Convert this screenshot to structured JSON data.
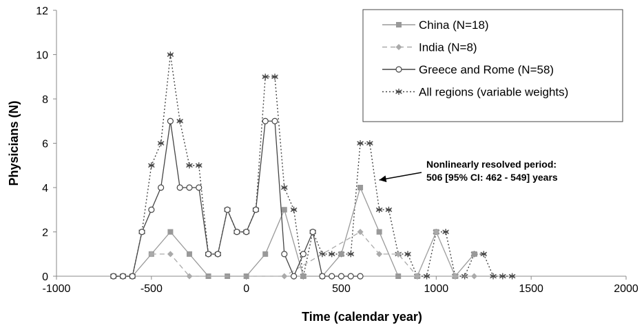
{
  "chart_data": {
    "type": "line",
    "xlabel": "Time (calendar year)",
    "ylabel": "Physicians (N)",
    "xlim": [
      -1000,
      2000
    ],
    "ylim": [
      0,
      12
    ],
    "xticks": [
      "-1000",
      "-500",
      "0",
      "500",
      "1000",
      "1500",
      "2000"
    ],
    "yticks": [
      "0",
      "2",
      "4",
      "6",
      "8",
      "10",
      "12"
    ],
    "grid": false,
    "legend_position": "top-right",
    "series": [
      {
        "name": "China (N=18)",
        "color": "#999999",
        "style": "solid",
        "marker": "square",
        "points": [
          [
            -700,
            0
          ],
          [
            -650,
            0
          ],
          [
            -600,
            0
          ],
          [
            -500,
            1
          ],
          [
            -400,
            2
          ],
          [
            -300,
            1
          ],
          [
            -200,
            0
          ],
          [
            -100,
            0
          ],
          [
            0,
            0
          ],
          [
            100,
            1
          ],
          [
            200,
            3
          ],
          [
            300,
            0
          ],
          [
            400,
            0
          ],
          [
            500,
            1
          ],
          [
            600,
            4
          ],
          [
            700,
            2
          ],
          [
            800,
            0
          ],
          [
            900,
            0
          ],
          [
            1000,
            2
          ],
          [
            1100,
            0
          ],
          [
            1200,
            1
          ]
        ]
      },
      {
        "name": "India (N=8)",
        "color": "#aaaaaa",
        "style": "dashed",
        "marker": "diamond",
        "points": [
          [
            -500,
            1
          ],
          [
            -400,
            1
          ],
          [
            -300,
            0
          ],
          [
            200,
            0
          ],
          [
            600,
            2
          ],
          [
            700,
            1
          ],
          [
            800,
            1
          ],
          [
            900,
            0
          ],
          [
            1000,
            2
          ],
          [
            1100,
            0
          ],
          [
            1200,
            0
          ]
        ]
      },
      {
        "name": "Greece and Rome (N=58)",
        "color": "#444444",
        "style": "solid",
        "marker": "circle",
        "points": [
          [
            -700,
            0
          ],
          [
            -650,
            0
          ],
          [
            -600,
            0
          ],
          [
            -550,
            2
          ],
          [
            -500,
            3
          ],
          [
            -450,
            4
          ],
          [
            -400,
            7
          ],
          [
            -350,
            4
          ],
          [
            -300,
            4
          ],
          [
            -250,
            4
          ],
          [
            -200,
            1
          ],
          [
            -150,
            1
          ],
          [
            -100,
            3
          ],
          [
            -50,
            2
          ],
          [
            0,
            2
          ],
          [
            50,
            3
          ],
          [
            100,
            7
          ],
          [
            150,
            7
          ],
          [
            200,
            1
          ],
          [
            250,
            0
          ],
          [
            300,
            1
          ],
          [
            350,
            2
          ],
          [
            400,
            0
          ],
          [
            450,
            0
          ],
          [
            500,
            0
          ],
          [
            550,
            0
          ],
          [
            600,
            0
          ]
        ]
      },
      {
        "name": "All regions (variable weights)",
        "color": "#444444",
        "style": "dotted",
        "marker": "asterisk",
        "points": [
          [
            -700,
            0
          ],
          [
            -650,
            0
          ],
          [
            -600,
            0
          ],
          [
            -550,
            2
          ],
          [
            -500,
            5
          ],
          [
            -450,
            6
          ],
          [
            -400,
            10
          ],
          [
            -350,
            7
          ],
          [
            -300,
            5
          ],
          [
            -250,
            5
          ],
          [
            -200,
            1
          ],
          [
            -150,
            1
          ],
          [
            -100,
            3
          ],
          [
            -50,
            2
          ],
          [
            0,
            2
          ],
          [
            50,
            3
          ],
          [
            100,
            9
          ],
          [
            150,
            9
          ],
          [
            200,
            4
          ],
          [
            250,
            3
          ],
          [
            300,
            0
          ],
          [
            350,
            2
          ],
          [
            400,
            1
          ],
          [
            450,
            1
          ],
          [
            500,
            1
          ],
          [
            550,
            1
          ],
          [
            600,
            6
          ],
          [
            650,
            6
          ],
          [
            700,
            3
          ],
          [
            750,
            3
          ],
          [
            800,
            1
          ],
          [
            850,
            1
          ],
          [
            900,
            0
          ],
          [
            950,
            0
          ],
          [
            1000,
            2
          ],
          [
            1050,
            2
          ],
          [
            1100,
            0
          ],
          [
            1150,
            0
          ],
          [
            1200,
            1
          ],
          [
            1250,
            1
          ],
          [
            1300,
            0
          ],
          [
            1350,
            0
          ],
          [
            1400,
            0
          ]
        ]
      }
    ],
    "annotations": [
      {
        "lines": [
          "Nonlinearly resolved period:",
          "506 [95% CI: 462 - 549] years"
        ],
        "arrow_to": [
          700,
          4
        ]
      }
    ]
  }
}
